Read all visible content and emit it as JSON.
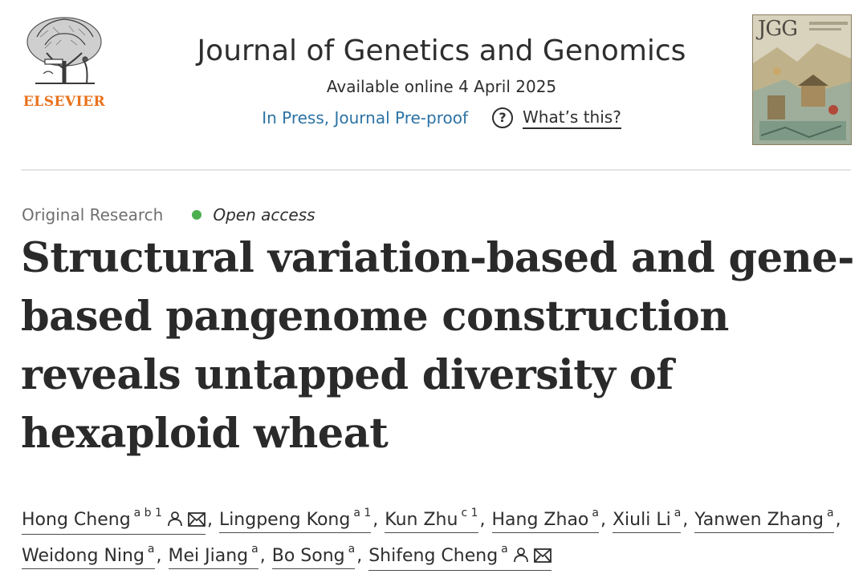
{
  "publisher": {
    "logo_text": "ELSEVIER"
  },
  "journal": {
    "title": "Journal of Genetics and Genomics",
    "available": "Available online 4 April 2025",
    "status": "In Press, Journal Pre-proof",
    "whats_this": "What’s this?",
    "question_glyph": "?",
    "cover_title": "JGG"
  },
  "article": {
    "type": "Original Research",
    "access": "Open access",
    "title": "Structural variation-based and gene-based pangenome construction reveals untapped diversity of hexaploid wheat"
  },
  "authors": [
    {
      "name": "Hong Cheng",
      "sup": "a b 1",
      "person": true,
      "mail": true
    },
    {
      "name": "Lingpeng Kong",
      "sup": "a 1",
      "person": false,
      "mail": false
    },
    {
      "name": "Kun Zhu",
      "sup": "c 1",
      "person": false,
      "mail": false
    },
    {
      "name": "Hang Zhao",
      "sup": "a",
      "person": false,
      "mail": false
    },
    {
      "name": "Xiuli Li",
      "sup": "a",
      "person": false,
      "mail": false
    },
    {
      "name": "Yanwen Zhang",
      "sup": "a",
      "person": false,
      "mail": false
    },
    {
      "name": "Weidong Ning",
      "sup": "a",
      "person": false,
      "mail": false
    },
    {
      "name": "Mei Jiang",
      "sup": "a",
      "person": false,
      "mail": false
    },
    {
      "name": "Bo Song",
      "sup": "a",
      "person": false,
      "mail": false
    },
    {
      "name": "Shifeng Cheng",
      "sup": "a",
      "person": true,
      "mail": true
    }
  ],
  "icons": {
    "person": "person-icon",
    "mail": "envelope-icon",
    "help": "question-circle-icon",
    "open_access": "green-dot"
  },
  "colors": {
    "elsevier_orange": "#e9711c",
    "link_blue": "#2c72a4",
    "open_access_green": "#4caf50",
    "text": "#2e2e2e",
    "muted": "#6f6f6f"
  }
}
